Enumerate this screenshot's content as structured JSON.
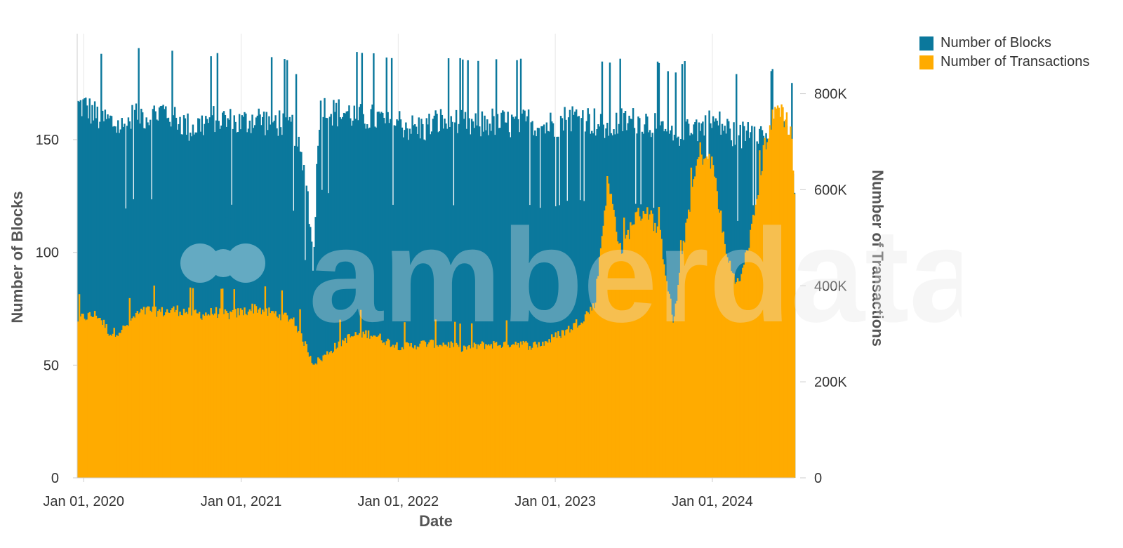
{
  "colors": {
    "blocks": "#0b789c",
    "transactions": "#ffab00",
    "grid": "#e6e6e6",
    "axis": "#cccccc",
    "watermark": "#e0e0e0"
  },
  "legend": {
    "items": [
      {
        "label": "Number of Blocks",
        "color": "#0b789c"
      },
      {
        "label": "Number of Transactions",
        "color": "#ffab00"
      }
    ]
  },
  "watermark": {
    "text": "amberdata"
  },
  "chart_data": {
    "type": "bar",
    "xlabel": "Date",
    "ylabel_left": "Number of Blocks",
    "ylabel_right": "Number of Transactions",
    "x_range": [
      "2019-12-17",
      "2024-07-10"
    ],
    "x_ticks": [
      "Jan 01, 2020",
      "Jan 01, 2021",
      "Jan 01, 2022",
      "Jan 01, 2023",
      "Jan 01, 2024"
    ],
    "ylim_left": [
      0,
      197
    ],
    "yticks_left": [
      "0",
      "50",
      "100",
      "150"
    ],
    "ylim_right": [
      0,
      925000
    ],
    "yticks_right": [
      "0",
      "200K",
      "400K",
      "600K",
      "800K"
    ],
    "grid": "vertical",
    "legend_position": "top-right",
    "series": [
      {
        "name": "Number of Blocks",
        "axis": "left",
        "x": [
          "2019-12-17",
          "2020-01-01",
          "2020-02-01",
          "2020-03-01",
          "2020-04-01",
          "2020-05-01",
          "2020-06-01",
          "2020-07-01",
          "2020-08-01",
          "2020-09-01",
          "2020-10-01",
          "2020-11-01",
          "2020-12-01",
          "2021-01-01",
          "2021-02-01",
          "2021-03-01",
          "2021-04-01",
          "2021-05-01",
          "2021-06-01",
          "2021-06-15",
          "2021-07-01",
          "2021-08-01",
          "2021-09-01",
          "2021-10-01",
          "2021-11-01",
          "2021-12-01",
          "2022-01-01",
          "2022-02-01",
          "2022-03-01",
          "2022-04-01",
          "2022-05-01",
          "2022-06-01",
          "2022-07-01",
          "2022-08-01",
          "2022-09-01",
          "2022-10-01",
          "2022-11-01",
          "2022-12-01",
          "2023-01-01",
          "2023-02-01",
          "2023-03-01",
          "2023-04-01",
          "2023-05-01",
          "2023-06-01",
          "2023-07-01",
          "2023-08-01",
          "2023-09-01",
          "2023-10-01",
          "2023-11-01",
          "2023-12-01",
          "2024-01-01",
          "2024-02-01",
          "2024-03-01",
          "2024-04-01",
          "2024-05-01",
          "2024-06-01",
          "2024-07-01",
          "2024-07-10"
        ],
        "values": [
          165,
          165,
          160,
          158,
          155,
          162,
          160,
          163,
          160,
          155,
          157,
          160,
          158,
          157,
          160,
          158,
          158,
          155,
          130,
          95,
          165,
          162,
          162,
          160,
          160,
          158,
          158,
          155,
          155,
          158,
          158,
          157,
          156,
          158,
          157,
          157,
          158,
          156,
          157,
          160,
          160,
          158,
          155,
          158,
          158,
          158,
          155,
          150,
          158,
          155,
          158,
          155,
          150,
          158,
          150,
          155,
          150,
          120
        ]
      },
      {
        "name": "Number of Transactions",
        "axis": "right",
        "x": [
          "2019-12-17",
          "2020-01-01",
          "2020-02-01",
          "2020-03-01",
          "2020-04-01",
          "2020-05-01",
          "2020-06-01",
          "2020-07-01",
          "2020-08-01",
          "2020-09-01",
          "2020-10-01",
          "2020-11-01",
          "2020-12-01",
          "2021-01-01",
          "2021-02-01",
          "2021-03-01",
          "2021-04-01",
          "2021-05-01",
          "2021-06-01",
          "2021-06-15",
          "2021-07-01",
          "2021-08-01",
          "2021-09-01",
          "2021-10-01",
          "2021-11-01",
          "2021-12-01",
          "2022-01-01",
          "2022-02-01",
          "2022-03-01",
          "2022-04-01",
          "2022-05-01",
          "2022-06-01",
          "2022-07-01",
          "2022-08-01",
          "2022-09-01",
          "2022-10-01",
          "2022-11-01",
          "2022-12-01",
          "2023-01-01",
          "2023-02-01",
          "2023-03-01",
          "2023-04-01",
          "2023-05-01",
          "2023-06-01",
          "2023-07-01",
          "2023-08-01",
          "2023-09-01",
          "2023-10-01",
          "2023-11-01",
          "2023-12-01",
          "2024-01-01",
          "2024-02-01",
          "2024-03-01",
          "2024-04-01",
          "2024-05-01",
          "2024-06-01",
          "2024-07-01",
          "2024-07-10"
        ],
        "values": [
          330000,
          335000,
          340000,
          300000,
          310000,
          340000,
          350000,
          345000,
          350000,
          345000,
          340000,
          345000,
          340000,
          345000,
          355000,
          345000,
          340000,
          330000,
          270000,
          240000,
          245000,
          270000,
          290000,
          300000,
          300000,
          285000,
          275000,
          275000,
          280000,
          280000,
          278000,
          270000,
          275000,
          278000,
          278000,
          282000,
          275000,
          280000,
          295000,
          310000,
          330000,
          360000,
          620000,
          470000,
          540000,
          560000,
          500000,
          320000,
          540000,
          680000,
          650000,
          460000,
          400000,
          520000,
          700000,
          780000,
          720000,
          560000
        ]
      }
    ]
  }
}
